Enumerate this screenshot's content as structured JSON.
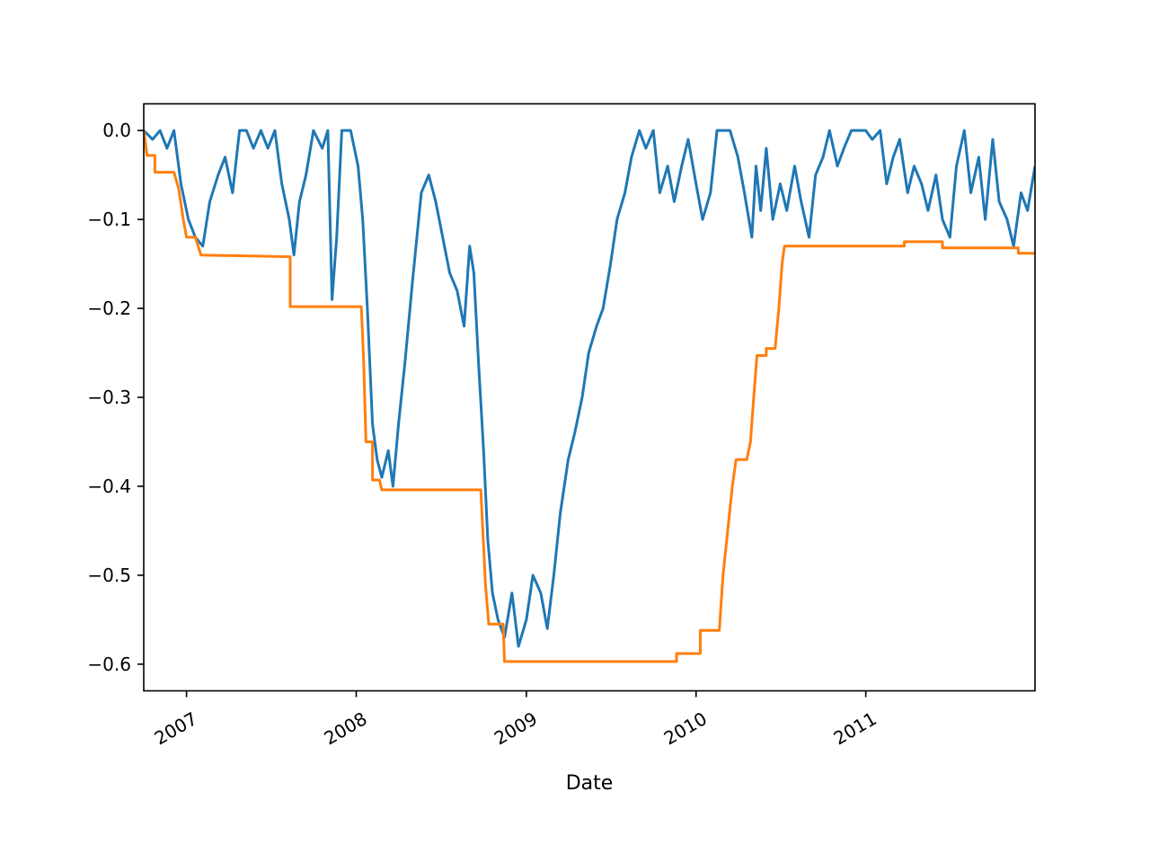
{
  "chart_data": {
    "type": "line",
    "title": "",
    "xlabel": "Date",
    "ylabel": "",
    "xlim": [
      "2006-10-01",
      "2011-12-31"
    ],
    "ylim": [
      -0.63,
      0.03
    ],
    "grid": false,
    "legend": "none",
    "x_ticks": [
      {
        "date": "2007-01-01",
        "label": "2007"
      },
      {
        "date": "2008-01-01",
        "label": "2008"
      },
      {
        "date": "2009-01-01",
        "label": "2009"
      },
      {
        "date": "2010-01-01",
        "label": "2010"
      },
      {
        "date": "2011-01-01",
        "label": "2011"
      }
    ],
    "y_ticks": [
      {
        "value": 0.0,
        "label": "0.0"
      },
      {
        "value": -0.1,
        "label": "−0.1"
      },
      {
        "value": -0.2,
        "label": "−0.2"
      },
      {
        "value": -0.3,
        "label": "−0.3"
      },
      {
        "value": -0.4,
        "label": "−0.4"
      },
      {
        "value": -0.5,
        "label": "−0.5"
      },
      {
        "value": -0.6,
        "label": "−0.6"
      }
    ],
    "series": [
      {
        "color": "#1f77b4",
        "points": [
          [
            "2006-10-01",
            0.0
          ],
          [
            "2006-10-20",
            -0.01
          ],
          [
            "2006-11-05",
            0.0
          ],
          [
            "2006-11-20",
            -0.02
          ],
          [
            "2006-12-05",
            0.0
          ],
          [
            "2006-12-20",
            -0.06
          ],
          [
            "2007-01-05",
            -0.1
          ],
          [
            "2007-01-20",
            -0.12
          ],
          [
            "2007-02-05",
            -0.13
          ],
          [
            "2007-02-20",
            -0.08
          ],
          [
            "2007-03-10",
            -0.05
          ],
          [
            "2007-03-25",
            -0.03
          ],
          [
            "2007-04-10",
            -0.07
          ],
          [
            "2007-04-25",
            0.0
          ],
          [
            "2007-05-10",
            0.0
          ],
          [
            "2007-05-25",
            -0.02
          ],
          [
            "2007-06-10",
            0.0
          ],
          [
            "2007-06-25",
            -0.02
          ],
          [
            "2007-07-10",
            0.0
          ],
          [
            "2007-07-25",
            -0.06
          ],
          [
            "2007-08-10",
            -0.1
          ],
          [
            "2007-08-20",
            -0.14
          ],
          [
            "2007-09-01",
            -0.08
          ],
          [
            "2007-09-15",
            -0.05
          ],
          [
            "2007-10-01",
            0.0
          ],
          [
            "2007-10-20",
            -0.02
          ],
          [
            "2007-11-01",
            0.0
          ],
          [
            "2007-11-10",
            -0.19
          ],
          [
            "2007-11-20",
            -0.12
          ],
          [
            "2007-12-01",
            0.0
          ],
          [
            "2007-12-20",
            0.0
          ],
          [
            "2008-01-05",
            -0.04
          ],
          [
            "2008-01-15",
            -0.1
          ],
          [
            "2008-01-25",
            -0.2
          ],
          [
            "2008-02-05",
            -0.33
          ],
          [
            "2008-02-15",
            -0.37
          ],
          [
            "2008-02-25",
            -0.39
          ],
          [
            "2008-03-10",
            -0.36
          ],
          [
            "2008-03-20",
            -0.4
          ],
          [
            "2008-04-01",
            -0.33
          ],
          [
            "2008-04-15",
            -0.26
          ],
          [
            "2008-05-01",
            -0.17
          ],
          [
            "2008-05-20",
            -0.07
          ],
          [
            "2008-06-05",
            -0.05
          ],
          [
            "2008-06-20",
            -0.08
          ],
          [
            "2008-07-05",
            -0.12
          ],
          [
            "2008-07-20",
            -0.16
          ],
          [
            "2008-08-05",
            -0.18
          ],
          [
            "2008-08-20",
            -0.22
          ],
          [
            "2008-09-01",
            -0.13
          ],
          [
            "2008-09-10",
            -0.16
          ],
          [
            "2008-09-20",
            -0.26
          ],
          [
            "2008-10-01",
            -0.36
          ],
          [
            "2008-10-10",
            -0.46
          ],
          [
            "2008-10-20",
            -0.52
          ],
          [
            "2008-11-01",
            -0.55
          ],
          [
            "2008-11-15",
            -0.57
          ],
          [
            "2008-12-01",
            -0.52
          ],
          [
            "2008-12-15",
            -0.58
          ],
          [
            "2009-01-01",
            -0.55
          ],
          [
            "2009-01-15",
            -0.5
          ],
          [
            "2009-02-01",
            -0.52
          ],
          [
            "2009-02-15",
            -0.56
          ],
          [
            "2009-03-01",
            -0.5
          ],
          [
            "2009-03-15",
            -0.43
          ],
          [
            "2009-04-01",
            -0.37
          ],
          [
            "2009-04-15",
            -0.34
          ],
          [
            "2009-05-01",
            -0.3
          ],
          [
            "2009-05-15",
            -0.25
          ],
          [
            "2009-06-01",
            -0.22
          ],
          [
            "2009-06-15",
            -0.2
          ],
          [
            "2009-07-01",
            -0.15
          ],
          [
            "2009-07-15",
            -0.1
          ],
          [
            "2009-08-01",
            -0.07
          ],
          [
            "2009-08-15",
            -0.03
          ],
          [
            "2009-09-01",
            0.0
          ],
          [
            "2009-09-15",
            -0.02
          ],
          [
            "2009-10-01",
            0.0
          ],
          [
            "2009-10-15",
            -0.07
          ],
          [
            "2009-11-01",
            -0.04
          ],
          [
            "2009-11-15",
            -0.08
          ],
          [
            "2009-12-01",
            -0.04
          ],
          [
            "2009-12-15",
            -0.01
          ],
          [
            "2010-01-01",
            -0.06
          ],
          [
            "2010-01-15",
            -0.1
          ],
          [
            "2010-02-01",
            -0.07
          ],
          [
            "2010-02-15",
            0.0
          ],
          [
            "2010-03-01",
            0.0
          ],
          [
            "2010-03-15",
            0.0
          ],
          [
            "2010-04-01",
            -0.03
          ],
          [
            "2010-04-15",
            -0.07
          ],
          [
            "2010-05-01",
            -0.12
          ],
          [
            "2010-05-10",
            -0.04
          ],
          [
            "2010-05-20",
            -0.09
          ],
          [
            "2010-06-01",
            -0.02
          ],
          [
            "2010-06-15",
            -0.1
          ],
          [
            "2010-07-01",
            -0.06
          ],
          [
            "2010-07-15",
            -0.09
          ],
          [
            "2010-08-01",
            -0.04
          ],
          [
            "2010-08-15",
            -0.08
          ],
          [
            "2010-09-01",
            -0.12
          ],
          [
            "2010-09-15",
            -0.05
          ],
          [
            "2010-10-01",
            -0.03
          ],
          [
            "2010-10-15",
            0.0
          ],
          [
            "2010-11-01",
            -0.04
          ],
          [
            "2010-11-15",
            -0.02
          ],
          [
            "2010-12-01",
            0.0
          ],
          [
            "2010-12-15",
            0.0
          ],
          [
            "2011-01-01",
            0.0
          ],
          [
            "2011-01-15",
            -0.01
          ],
          [
            "2011-02-01",
            0.0
          ],
          [
            "2011-02-15",
            -0.06
          ],
          [
            "2011-03-01",
            -0.03
          ],
          [
            "2011-03-15",
            -0.01
          ],
          [
            "2011-04-01",
            -0.07
          ],
          [
            "2011-04-15",
            -0.04
          ],
          [
            "2011-05-01",
            -0.06
          ],
          [
            "2011-05-15",
            -0.09
          ],
          [
            "2011-06-01",
            -0.05
          ],
          [
            "2011-06-15",
            -0.1
          ],
          [
            "2011-07-01",
            -0.12
          ],
          [
            "2011-07-15",
            -0.04
          ],
          [
            "2011-08-01",
            0.0
          ],
          [
            "2011-08-15",
            -0.07
          ],
          [
            "2011-09-01",
            -0.03
          ],
          [
            "2011-09-15",
            -0.1
          ],
          [
            "2011-10-01",
            -0.01
          ],
          [
            "2011-10-15",
            -0.08
          ],
          [
            "2011-11-01",
            -0.1
          ],
          [
            "2011-11-15",
            -0.13
          ],
          [
            "2011-12-01",
            -0.07
          ],
          [
            "2011-12-15",
            -0.09
          ],
          [
            "2011-12-31",
            -0.04
          ]
        ]
      },
      {
        "color": "#ff7f0e",
        "points": [
          [
            "2006-10-01",
            0.0
          ],
          [
            "2006-10-08",
            -0.028
          ],
          [
            "2006-10-25",
            -0.028
          ],
          [
            "2006-10-25",
            -0.047
          ],
          [
            "2006-12-05",
            -0.047
          ],
          [
            "2006-12-15",
            -0.065
          ],
          [
            "2006-12-25",
            -0.1
          ],
          [
            "2007-01-01",
            -0.12
          ],
          [
            "2007-01-20",
            -0.12
          ],
          [
            "2007-02-01",
            -0.14
          ],
          [
            "2007-08-12",
            -0.142
          ],
          [
            "2007-08-12",
            -0.198
          ],
          [
            "2008-01-12",
            -0.198
          ],
          [
            "2008-01-17",
            -0.26
          ],
          [
            "2008-01-22",
            -0.35
          ],
          [
            "2008-02-05",
            -0.35
          ],
          [
            "2008-02-05",
            -0.393
          ],
          [
            "2008-02-20",
            -0.393
          ],
          [
            "2008-02-25",
            -0.404
          ],
          [
            "2008-09-25",
            -0.404
          ],
          [
            "2008-10-05",
            -0.51
          ],
          [
            "2008-10-12",
            -0.555
          ],
          [
            "2008-11-12",
            -0.555
          ],
          [
            "2008-11-15",
            -0.597
          ],
          [
            "2009-11-20",
            -0.597
          ],
          [
            "2009-11-20",
            -0.588
          ],
          [
            "2010-01-10",
            -0.588
          ],
          [
            "2010-01-10",
            -0.562
          ],
          [
            "2010-02-20",
            -0.562
          ],
          [
            "2010-02-28",
            -0.5
          ],
          [
            "2010-03-10",
            -0.45
          ],
          [
            "2010-03-20",
            -0.4
          ],
          [
            "2010-03-28",
            -0.37
          ],
          [
            "2010-04-20",
            -0.37
          ],
          [
            "2010-04-28",
            -0.35
          ],
          [
            "2010-05-05",
            -0.3
          ],
          [
            "2010-05-12",
            -0.253
          ],
          [
            "2010-06-01",
            -0.253
          ],
          [
            "2010-06-01",
            -0.245
          ],
          [
            "2010-06-20",
            -0.245
          ],
          [
            "2010-06-28",
            -0.2
          ],
          [
            "2010-07-05",
            -0.15
          ],
          [
            "2010-07-10",
            -0.13
          ],
          [
            "2011-03-25",
            -0.13
          ],
          [
            "2011-03-25",
            -0.125
          ],
          [
            "2011-06-15",
            -0.125
          ],
          [
            "2011-06-15",
            -0.132
          ],
          [
            "2011-11-25",
            -0.132
          ],
          [
            "2011-11-25",
            -0.138
          ],
          [
            "2011-12-31",
            -0.138
          ]
        ]
      }
    ]
  }
}
